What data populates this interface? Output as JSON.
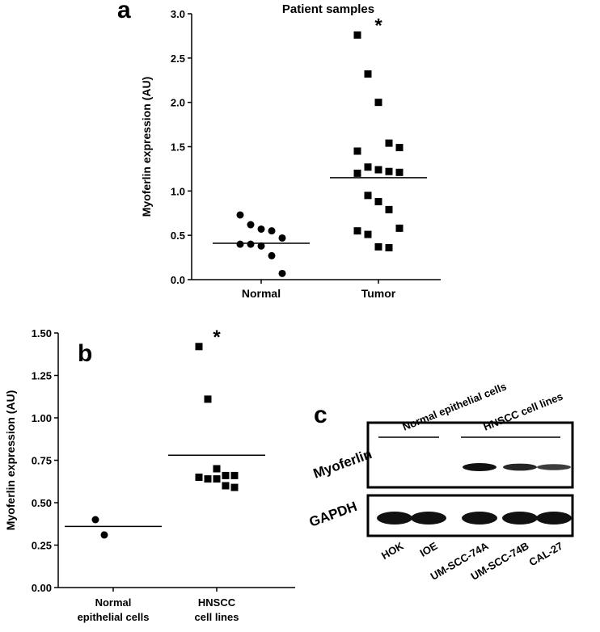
{
  "chart_data": [
    {
      "type": "dot",
      "panel": "a",
      "title": "Patient samples",
      "y_label": "Myoferlin expression (AU)",
      "categories": [
        "Normal",
        "Tumor"
      ],
      "groups": [
        {
          "marker": "circle",
          "color": "#000000",
          "line": 0.41,
          "values": [
            0.73,
            0.62,
            0.57,
            0.55,
            0.47,
            0.4,
            0.4,
            0.38,
            0.27,
            0.07
          ]
        },
        {
          "marker": "square",
          "color": "#000000",
          "line": 1.15,
          "annotation": "*",
          "values": [
            2.76,
            2.32,
            2.0,
            1.54,
            1.49,
            1.45,
            1.27,
            1.24,
            1.22,
            1.21,
            1.2,
            0.95,
            0.88,
            0.79,
            0.58,
            0.55,
            0.51,
            0.37,
            0.36
          ]
        }
      ],
      "ylim": [
        0,
        3
      ],
      "yticks": [
        {
          "value": 0,
          "label": "0.0"
        },
        0.5,
        {
          "value": 1,
          "label": "1.0"
        },
        1.5,
        {
          "value": 2,
          "label": "2.0"
        },
        2.5,
        {
          "value": 3,
          "label": "3.0"
        }
      ]
    },
    {
      "type": "dot",
      "panel": "b",
      "y_label": "Myoferlin expression (AU)",
      "categories": [
        [
          "Normal",
          "epithelial cells"
        ],
        [
          "HNSCC",
          "cell lines"
        ]
      ],
      "groups": [
        {
          "marker": "circle",
          "color": "#000000",
          "line": 0.36,
          "values": [
            0.4,
            0.31
          ]
        },
        {
          "marker": "square",
          "color": "#000000",
          "line": 0.78,
          "annotation": "*",
          "values": [
            1.42,
            1.11,
            0.7,
            0.66,
            0.66,
            0.65,
            0.64,
            0.64,
            0.6,
            0.59
          ]
        }
      ],
      "ylim": [
        0,
        1.5
      ],
      "yticks": [
        {
          "value": 0,
          "label": "0.00"
        },
        0.25,
        {
          "value": 0.5,
          "label": "0.50"
        },
        0.75,
        {
          "value": 1,
          "label": "1.00"
        },
        1.25,
        {
          "value": 1.5,
          "label": "1.50"
        }
      ]
    }
  ],
  "blot": {
    "panel": "c",
    "groups": [
      "Normal epithelial cells",
      "HNSCC cell lines"
    ],
    "rows": [
      "Myoferlin",
      "GAPDH"
    ],
    "lanes": [
      "HOK",
      "IOE",
      "UM-SCC-74A",
      "UM-SCC-74B",
      "CAL-27"
    ]
  }
}
